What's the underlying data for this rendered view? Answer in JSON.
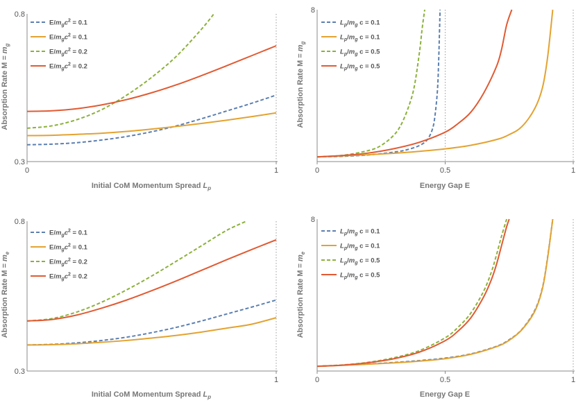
{
  "colors": {
    "blue": "#5b7fb0",
    "orange": "#e3a230",
    "green": "#8bb13a",
    "red": "#e15a32"
  },
  "chart_data": [
    {
      "type": "line",
      "xlabel_main": "Initial CoM Momentum Spread ",
      "xlabel_sub": "p",
      "ylabel_main": "Absorption Rate M = ",
      "ylabel_sub": "g",
      "xlim": [
        0,
        1
      ],
      "ylim": [
        0.3,
        0.8
      ],
      "ymin_label": "0.3",
      "ymax_label": "0.8",
      "xticks": [
        "0",
        "1"
      ],
      "vline_x": 1,
      "legend": [
        {
          "pre": "E/",
          "mid": "c",
          "sup": "2",
          "post": " = 0.1",
          "sub": "g"
        },
        {
          "pre": "E/",
          "mid": "c",
          "sup": "2",
          "post": " = 0.1",
          "sub": "g"
        },
        {
          "pre": "E/",
          "mid": "c",
          "sup": "2",
          "post": " = 0.2",
          "sub": "g"
        },
        {
          "pre": "E/",
          "mid": "c",
          "sup": "2",
          "post": " = 0.2",
          "sub": "g"
        }
      ],
      "series": [
        {
          "name": "E/m_g c^2 = 0.1",
          "color": "blue",
          "dashed": true,
          "x": [
            0,
            0.1,
            0.2,
            0.3,
            0.4,
            0.5,
            0.6,
            0.7,
            0.8,
            0.9,
            1.0
          ],
          "y": [
            0.357,
            0.359,
            0.364,
            0.373,
            0.385,
            0.401,
            0.421,
            0.445,
            0.471,
            0.497,
            0.525
          ]
        },
        {
          "name": "E/m_g c^2 = 0.1",
          "color": "orange",
          "dashed": false,
          "x": [
            0,
            0.1,
            0.2,
            0.3,
            0.4,
            0.5,
            0.6,
            0.7,
            0.8,
            0.9,
            1.0
          ],
          "y": [
            0.388,
            0.389,
            0.392,
            0.396,
            0.402,
            0.41,
            0.419,
            0.429,
            0.44,
            0.452,
            0.465
          ]
        },
        {
          "name": "E/m_g c^2 = 0.2",
          "color": "green",
          "dashed": true,
          "x": [
            0,
            0.1,
            0.2,
            0.3,
            0.4,
            0.5,
            0.6,
            0.7,
            0.75
          ],
          "y": [
            0.413,
            0.421,
            0.442,
            0.476,
            0.525,
            0.585,
            0.657,
            0.748,
            0.8
          ]
        },
        {
          "name": "E/m_g c^2 = 0.2",
          "color": "red",
          "dashed": false,
          "x": [
            0,
            0.1,
            0.2,
            0.3,
            0.4,
            0.5,
            0.6,
            0.7,
            0.8,
            0.9,
            1.0
          ],
          "y": [
            0.47,
            0.472,
            0.479,
            0.492,
            0.51,
            0.533,
            0.56,
            0.591,
            0.624,
            0.658,
            0.692
          ]
        }
      ]
    },
    {
      "type": "line",
      "xlabel_main": "Energy Gap E",
      "xlabel_sub": "",
      "ylabel_main": "Absorption Rate M = ",
      "ylabel_sub": "g",
      "xlim": [
        0,
        1
      ],
      "ylim": [
        0,
        8
      ],
      "ymin_label": "",
      "ymax_label": "8",
      "xticks": [
        "0",
        "0.5",
        "1"
      ],
      "vlines_x": [
        0.5,
        1
      ],
      "legend": [
        {
          "pre": "",
          "mid": "/",
          "sub2": "g",
          "post": "c = 0.1",
          "sub": "p"
        },
        {
          "pre": "",
          "mid": "/",
          "sub2": "g",
          "post": "c = 0.1",
          "sub": "p"
        },
        {
          "pre": "",
          "mid": "/",
          "sub2": "g",
          "post": "c = 0.5",
          "sub": "p"
        },
        {
          "pre": "",
          "mid": "/",
          "sub2": "g",
          "post": "c = 0.5",
          "sub": "p"
        }
      ],
      "series": [
        {
          "name": "L_p/m_g c = 0.1",
          "color": "blue",
          "dashed": true,
          "x": [
            0,
            0.1,
            0.2,
            0.3,
            0.35,
            0.4,
            0.43,
            0.45,
            0.46,
            0.47,
            0.475,
            0.48
          ],
          "y": [
            0.25,
            0.28,
            0.35,
            0.5,
            0.62,
            0.85,
            1.15,
            1.7,
            2.4,
            3.8,
            5.5,
            8.0
          ]
        },
        {
          "name": "L_p/m_g c = 0.1",
          "color": "orange",
          "dashed": false,
          "x": [
            0,
            0.1,
            0.2,
            0.3,
            0.4,
            0.5,
            0.6,
            0.7,
            0.75,
            0.8,
            0.85,
            0.88,
            0.9,
            0.92
          ],
          "y": [
            0.25,
            0.3,
            0.36,
            0.44,
            0.54,
            0.67,
            0.86,
            1.16,
            1.42,
            1.85,
            2.8,
            3.9,
            5.5,
            8.0
          ]
        },
        {
          "name": "L_p/m_g c = 0.5",
          "color": "green",
          "dashed": true,
          "x": [
            0,
            0.1,
            0.2,
            0.25,
            0.3,
            0.33,
            0.36,
            0.38,
            0.4,
            0.41,
            0.42
          ],
          "y": [
            0.25,
            0.33,
            0.58,
            0.85,
            1.4,
            2.0,
            3.0,
            4.0,
            5.8,
            7.0,
            8.0
          ]
        },
        {
          "name": "L_p/m_g c = 0.5",
          "color": "red",
          "dashed": false,
          "x": [
            0,
            0.1,
            0.2,
            0.3,
            0.4,
            0.5,
            0.55,
            0.6,
            0.65,
            0.7,
            0.72,
            0.74,
            0.76
          ],
          "y": [
            0.25,
            0.32,
            0.45,
            0.68,
            1.02,
            1.55,
            2.0,
            2.6,
            3.6,
            5.0,
            5.9,
            7.2,
            8.0
          ]
        }
      ]
    },
    {
      "type": "line",
      "xlabel_main": "Initial CoM Momentum Spread ",
      "xlabel_sub": "p",
      "ylabel_main": "Absorption Rate M = ",
      "ylabel_sub": "e",
      "xlim": [
        0,
        1
      ],
      "ylim": [
        0.3,
        0.8
      ],
      "ymin_label": "0.3",
      "ymax_label": "0.8",
      "xticks": [
        "1"
      ],
      "vline_x": 1,
      "legend": [
        {
          "pre": "E/",
          "mid": "c",
          "sup": "2",
          "post": " = 0.1",
          "sub": "g"
        },
        {
          "pre": "E/",
          "mid": "c",
          "sup": "2",
          "post": " = 0.1",
          "sub": "g"
        },
        {
          "pre": "E/",
          "mid": "c",
          "sup": "2",
          "post": " = 0.2",
          "sub": "g"
        },
        {
          "pre": "E/",
          "mid": "c",
          "sup": "2",
          "post": " = 0.2",
          "sub": "g"
        }
      ],
      "series": [
        {
          "name": "E/m_g c^2 = 0.1",
          "color": "blue",
          "dashed": true,
          "x": [
            0,
            0.1,
            0.2,
            0.3,
            0.4,
            0.5,
            0.6,
            0.7,
            0.8,
            0.9,
            1.0
          ],
          "y": [
            0.387,
            0.389,
            0.394,
            0.402,
            0.413,
            0.428,
            0.446,
            0.467,
            0.49,
            0.513,
            0.537
          ]
        },
        {
          "name": "E/m_g c^2 = 0.1",
          "color": "orange",
          "dashed": false,
          "x": [
            0,
            0.1,
            0.2,
            0.3,
            0.4,
            0.5,
            0.6,
            0.7,
            0.8,
            0.9,
            1.0
          ],
          "y": [
            0.387,
            0.388,
            0.391,
            0.396,
            0.402,
            0.41,
            0.419,
            0.43,
            0.443,
            0.456,
            0.478
          ]
        },
        {
          "name": "E/m_g c^2 = 0.2",
          "color": "green",
          "dashed": true,
          "x": [
            0,
            0.1,
            0.2,
            0.3,
            0.4,
            0.5,
            0.6,
            0.7,
            0.8,
            0.88
          ],
          "y": [
            0.467,
            0.475,
            0.497,
            0.53,
            0.571,
            0.617,
            0.667,
            0.718,
            0.769,
            0.8
          ]
        },
        {
          "name": "E/m_g c^2 = 0.2",
          "color": "red",
          "dashed": false,
          "x": [
            0,
            0.1,
            0.2,
            0.3,
            0.4,
            0.5,
            0.6,
            0.7,
            0.8,
            0.9,
            1.0
          ],
          "y": [
            0.467,
            0.472,
            0.487,
            0.51,
            0.537,
            0.568,
            0.601,
            0.636,
            0.671,
            0.705,
            0.738
          ]
        }
      ]
    },
    {
      "type": "line",
      "xlabel_main": "Energy Gap E",
      "xlabel_sub": "",
      "ylabel_main": "Absorption Rate M = ",
      "ylabel_sub": "e",
      "xlim": [
        0,
        1
      ],
      "ylim": [
        0,
        8
      ],
      "ymin_label": "",
      "ymax_label": "8",
      "xticks": [
        "0",
        "0.5",
        "1"
      ],
      "vlines_x": [
        1
      ],
      "legend": [
        {
          "pre": "",
          "mid": "/",
          "sub2": "g",
          "post": "c = 0.1",
          "sub": "p"
        },
        {
          "pre": "",
          "mid": "/",
          "sub2": "g",
          "post": "c = 0.1",
          "sub": "p"
        },
        {
          "pre": "",
          "mid": "/",
          "sub2": "g",
          "post": "c = 0.5",
          "sub": "p"
        },
        {
          "pre": "",
          "mid": "/",
          "sub2": "g",
          "post": "c = 0.5",
          "sub": "p"
        }
      ],
      "series": [
        {
          "name": "L_p/m_g c = 0.1",
          "color": "blue",
          "dashed": true,
          "x": [
            0,
            0.1,
            0.2,
            0.3,
            0.4,
            0.5,
            0.6,
            0.7,
            0.75,
            0.8,
            0.85,
            0.88,
            0.9,
            0.92
          ],
          "y": [
            0.25,
            0.31,
            0.37,
            0.45,
            0.55,
            0.68,
            0.9,
            1.3,
            1.65,
            2.2,
            3.2,
            4.4,
            6.0,
            8.0
          ]
        },
        {
          "name": "L_p/m_g c = 0.1",
          "color": "orange",
          "dashed": false,
          "x": [
            0,
            0.1,
            0.2,
            0.3,
            0.4,
            0.5,
            0.6,
            0.7,
            0.75,
            0.8,
            0.85,
            0.88,
            0.9,
            0.92
          ],
          "y": [
            0.25,
            0.3,
            0.36,
            0.43,
            0.52,
            0.65,
            0.88,
            1.28,
            1.62,
            2.18,
            3.15,
            4.35,
            5.95,
            8.0
          ]
        },
        {
          "name": "L_p/m_g c = 0.5",
          "color": "green",
          "dashed": true,
          "x": [
            0,
            0.1,
            0.2,
            0.3,
            0.4,
            0.5,
            0.55,
            0.6,
            0.65,
            0.68,
            0.7,
            0.72,
            0.74
          ],
          "y": [
            0.25,
            0.32,
            0.46,
            0.7,
            1.08,
            1.75,
            2.3,
            3.05,
            4.2,
            5.2,
            6.1,
            7.1,
            8.0
          ]
        },
        {
          "name": "L_p/m_g c = 0.5",
          "color": "red",
          "dashed": false,
          "x": [
            0,
            0.1,
            0.2,
            0.3,
            0.4,
            0.5,
            0.55,
            0.6,
            0.65,
            0.68,
            0.7,
            0.72,
            0.74,
            0.75
          ],
          "y": [
            0.25,
            0.31,
            0.44,
            0.65,
            1.0,
            1.6,
            2.1,
            2.8,
            3.9,
            4.8,
            5.6,
            6.6,
            7.6,
            8.0
          ]
        }
      ]
    }
  ]
}
